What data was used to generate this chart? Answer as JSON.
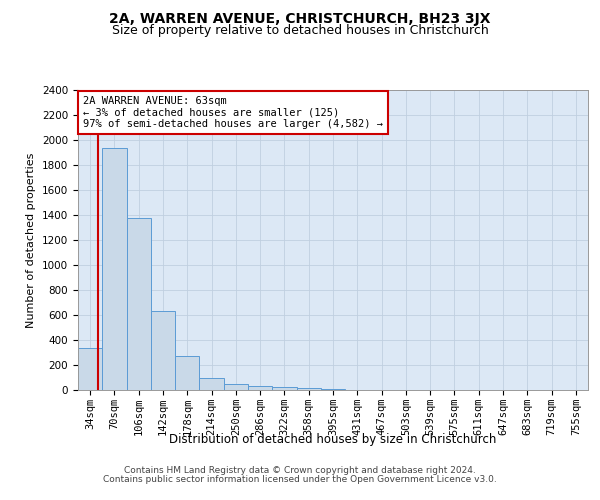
{
  "title": "2A, WARREN AVENUE, CHRISTCHURCH, BH23 3JX",
  "subtitle": "Size of property relative to detached houses in Christchurch",
  "xlabel": "Distribution of detached houses by size in Christchurch",
  "ylabel": "Number of detached properties",
  "categories": [
    "34sqm",
    "70sqm",
    "106sqm",
    "142sqm",
    "178sqm",
    "214sqm",
    "250sqm",
    "286sqm",
    "322sqm",
    "358sqm",
    "395sqm",
    "431sqm",
    "467sqm",
    "503sqm",
    "539sqm",
    "575sqm",
    "611sqm",
    "647sqm",
    "683sqm",
    "719sqm",
    "755sqm"
  ],
  "bar_values": [
    340,
    1940,
    1380,
    630,
    270,
    95,
    45,
    35,
    25,
    15,
    5,
    3,
    2,
    1,
    1,
    0,
    0,
    0,
    0,
    0,
    0
  ],
  "bar_color": "#c9d9e8",
  "bar_edge_color": "#5b9bd5",
  "ylim": [
    0,
    2400
  ],
  "yticks": [
    0,
    200,
    400,
    600,
    800,
    1000,
    1200,
    1400,
    1600,
    1800,
    2000,
    2200,
    2400
  ],
  "grid_color": "#c0cfe0",
  "bg_color": "#dce8f5",
  "property_line_color": "#cc0000",
  "annotation_text": "2A WARREN AVENUE: 63sqm\n← 3% of detached houses are smaller (125)\n97% of semi-detached houses are larger (4,582) →",
  "annotation_box_color": "#ffffff",
  "annotation_edge_color": "#cc0000",
  "footer_line1": "Contains HM Land Registry data © Crown copyright and database right 2024.",
  "footer_line2": "Contains public sector information licensed under the Open Government Licence v3.0.",
  "title_fontsize": 10,
  "subtitle_fontsize": 9,
  "xlabel_fontsize": 8.5,
  "ylabel_fontsize": 8,
  "tick_fontsize": 7.5,
  "footer_fontsize": 6.5,
  "annotation_fontsize": 7.5
}
